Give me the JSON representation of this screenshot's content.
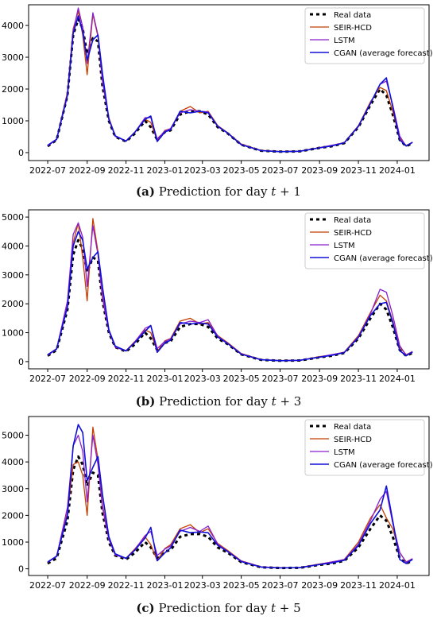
{
  "chart_data": [
    {
      "type": "line",
      "caption": {
        "letter": "(a)",
        "text": "Prediction for day",
        "var": "t",
        "plus": " + 1"
      },
      "x_ticks": [
        "2022-07",
        "2022-09",
        "2022-11",
        "2023-01",
        "2023-03",
        "2023-05",
        "2023-07",
        "2023-09",
        "2023-11",
        "2024-01"
      ],
      "y_ticks": [
        "0",
        "1000",
        "2000",
        "3000",
        "4000"
      ],
      "xlim": [
        "2022-06-01",
        "2024-02-20"
      ],
      "ylim": [
        -250,
        4650
      ],
      "legend_position": "top-right",
      "x": [
        "2022-07-01",
        "2022-07-15",
        "2022-08-01",
        "2022-08-10",
        "2022-08-18",
        "2022-08-25",
        "2022-09-01",
        "2022-09-10",
        "2022-09-18",
        "2022-09-25",
        "2022-10-05",
        "2022-10-15",
        "2022-11-01",
        "2022-11-15",
        "2022-12-01",
        "2022-12-10",
        "2022-12-20",
        "2023-01-01",
        "2023-01-10",
        "2023-01-25",
        "2023-02-10",
        "2023-02-25",
        "2023-03-10",
        "2023-03-25",
        "2023-04-10",
        "2023-05-01",
        "2023-06-01",
        "2023-07-01",
        "2023-08-01",
        "2023-09-01",
        "2023-09-20",
        "2023-10-10",
        "2023-11-01",
        "2023-11-20",
        "2023-12-05",
        "2023-12-15",
        "2023-12-25",
        "2024-01-05",
        "2024-01-15",
        "2024-01-25"
      ],
      "series": [
        {
          "name": "Real data",
          "color": "#000000",
          "dash": "4,4",
          "width": 3,
          "values": [
            200,
            400,
            1800,
            3700,
            4200,
            3900,
            3100,
            3600,
            3500,
            2100,
            1000,
            500,
            350,
            600,
            1000,
            800,
            400,
            650,
            700,
            1200,
            1300,
            1300,
            1200,
            800,
            600,
            250,
            60,
            30,
            40,
            150,
            200,
            300,
            800,
            1500,
            2000,
            1800,
            1200,
            400,
            200,
            300
          ]
        },
        {
          "name": "SEIR-HCD",
          "color": "#c43e00",
          "dash": "",
          "width": 1.3,
          "values": [
            220,
            420,
            1900,
            3900,
            4450,
            3700,
            2450,
            4350,
            3650,
            2300,
            1100,
            520,
            360,
            650,
            1050,
            950,
            380,
            700,
            750,
            1300,
            1450,
            1250,
            1300,
            850,
            620,
            270,
            70,
            35,
            45,
            160,
            220,
            320,
            850,
            1600,
            2050,
            1950,
            1300,
            450,
            220,
            330
          ]
        },
        {
          "name": "LSTM",
          "color": "#8a1fd0",
          "dash": "",
          "width": 1.3,
          "values": [
            210,
            410,
            1850,
            3800,
            4550,
            3950,
            2800,
            4400,
            3700,
            2250,
            1050,
            510,
            370,
            640,
            1100,
            1100,
            420,
            680,
            760,
            1250,
            1350,
            1300,
            1280,
            820,
            610,
            260,
            65,
            32,
            42,
            155,
            230,
            310,
            820,
            1550,
            2150,
            2250,
            1500,
            520,
            200,
            330
          ]
        },
        {
          "name": "CGAN (average forecast)",
          "color": "#1010d8",
          "dash": "",
          "width": 1.6,
          "values": [
            230,
            420,
            1800,
            3750,
            4300,
            3800,
            2900,
            3550,
            3700,
            2500,
            1050,
            530,
            360,
            640,
            1050,
            1150,
            350,
            650,
            720,
            1300,
            1250,
            1300,
            1250,
            830,
            610,
            250,
            62,
            30,
            42,
            150,
            210,
            310,
            830,
            1550,
            2150,
            2350,
            1450,
            400,
            210,
            320
          ]
        }
      ]
    },
    {
      "type": "line",
      "caption": {
        "letter": "(b)",
        "text": "Prediction for day",
        "var": "t",
        "plus": " + 3"
      },
      "x_ticks": [
        "2022-07",
        "2022-09",
        "2022-11",
        "2023-01",
        "2023-03",
        "2023-05",
        "2023-07",
        "2023-09",
        "2023-11",
        "2024-01"
      ],
      "y_ticks": [
        "0",
        "1000",
        "2000",
        "3000",
        "4000",
        "5000"
      ],
      "xlim": [
        "2022-06-01",
        "2024-02-20"
      ],
      "ylim": [
        -250,
        5250
      ],
      "legend_position": "top-right",
      "x": [
        "2022-07-01",
        "2022-07-15",
        "2022-08-01",
        "2022-08-10",
        "2022-08-18",
        "2022-08-25",
        "2022-09-01",
        "2022-09-10",
        "2022-09-18",
        "2022-09-25",
        "2022-10-05",
        "2022-10-15",
        "2022-11-01",
        "2022-11-15",
        "2022-12-01",
        "2022-12-10",
        "2022-12-20",
        "2023-01-01",
        "2023-01-10",
        "2023-01-25",
        "2023-02-10",
        "2023-02-25",
        "2023-03-10",
        "2023-03-25",
        "2023-04-10",
        "2023-05-01",
        "2023-06-01",
        "2023-07-01",
        "2023-08-01",
        "2023-09-01",
        "2023-09-20",
        "2023-10-10",
        "2023-11-01",
        "2023-11-20",
        "2023-12-05",
        "2023-12-15",
        "2023-12-25",
        "2024-01-05",
        "2024-01-15",
        "2024-01-25"
      ],
      "series": [
        {
          "name": "Real data",
          "color": "#000000",
          "dash": "4,4",
          "width": 3,
          "values": [
            200,
            400,
            1800,
            3700,
            4200,
            3900,
            3100,
            3600,
            3500,
            2100,
            1000,
            500,
            350,
            600,
            1000,
            800,
            400,
            650,
            700,
            1200,
            1300,
            1300,
            1200,
            800,
            600,
            250,
            60,
            30,
            40,
            150,
            200,
            300,
            800,
            1500,
            2000,
            1800,
            1200,
            400,
            200,
            300
          ]
        },
        {
          "name": "SEIR-HCD",
          "color": "#c43e00",
          "dash": "",
          "width": 1.3,
          "values": [
            230,
            450,
            2000,
            4100,
            4800,
            3600,
            2100,
            4950,
            3800,
            2300,
            1100,
            520,
            380,
            700,
            1100,
            1000,
            350,
            720,
            800,
            1400,
            1500,
            1300,
            1350,
            900,
            650,
            280,
            70,
            35,
            45,
            170,
            230,
            330,
            900,
            1700,
            2300,
            2100,
            1400,
            500,
            240,
            350
          ]
        },
        {
          "name": "LSTM",
          "color": "#8a1fd0",
          "dash": "",
          "width": 1.3,
          "values": [
            220,
            430,
            2100,
            4400,
            4800,
            4300,
            2600,
            4700,
            3700,
            2200,
            1050,
            500,
            370,
            680,
            1150,
            1250,
            450,
            700,
            780,
            1300,
            1400,
            1350,
            1450,
            880,
            630,
            270,
            68,
            33,
            43,
            160,
            240,
            320,
            860,
            1650,
            2500,
            2400,
            1600,
            550,
            220,
            350
          ]
        },
        {
          "name": "CGAN (average forecast)",
          "color": "#1010d8",
          "dash": "",
          "width": 1.6,
          "values": [
            240,
            440,
            1900,
            4000,
            4500,
            4200,
            3200,
            3600,
            3800,
            2600,
            1100,
            540,
            370,
            660,
            1050,
            1250,
            320,
            640,
            740,
            1350,
            1300,
            1330,
            1300,
            850,
            620,
            260,
            64,
            31,
            43,
            155,
            215,
            315,
            840,
            1600,
            2000,
            2050,
            1350,
            380,
            200,
            330
          ]
        }
      ]
    },
    {
      "type": "line",
      "caption": {
        "letter": "(c)",
        "text": "Prediction for day",
        "var": "t",
        "plus": " + 5"
      },
      "x_ticks": [
        "2022-07",
        "2022-09",
        "2022-11",
        "2023-01",
        "2023-03",
        "2023-05",
        "2023-07",
        "2023-09",
        "2023-11",
        "2024-01"
      ],
      "y_ticks": [
        "0",
        "1000",
        "2000",
        "3000",
        "4000",
        "5000"
      ],
      "xlim": [
        "2022-06-01",
        "2024-02-20"
      ],
      "ylim": [
        -250,
        5700
      ],
      "legend_position": "top-right",
      "x": [
        "2022-07-01",
        "2022-07-15",
        "2022-08-01",
        "2022-08-10",
        "2022-08-18",
        "2022-08-25",
        "2022-09-01",
        "2022-09-10",
        "2022-09-18",
        "2022-09-25",
        "2022-10-05",
        "2022-10-15",
        "2022-11-01",
        "2022-11-15",
        "2022-12-01",
        "2022-12-10",
        "2022-12-20",
        "2023-01-01",
        "2023-01-10",
        "2023-01-25",
        "2023-02-10",
        "2023-02-25",
        "2023-03-10",
        "2023-03-25",
        "2023-04-10",
        "2023-05-01",
        "2023-06-01",
        "2023-07-01",
        "2023-08-01",
        "2023-09-01",
        "2023-09-20",
        "2023-10-10",
        "2023-11-01",
        "2023-11-20",
        "2023-12-05",
        "2023-12-15",
        "2023-12-25",
        "2024-01-05",
        "2024-01-15",
        "2024-01-25"
      ],
      "series": [
        {
          "name": "Real data",
          "color": "#000000",
          "dash": "4,4",
          "width": 3,
          "values": [
            200,
            400,
            1800,
            3700,
            4200,
            3900,
            3100,
            3600,
            3500,
            2100,
            1000,
            500,
            350,
            600,
            1000,
            800,
            400,
            650,
            700,
            1200,
            1300,
            1300,
            1200,
            800,
            600,
            250,
            60,
            30,
            40,
            150,
            200,
            300,
            800,
            1500,
            2000,
            1800,
            1200,
            400,
            200,
            300
          ]
        },
        {
          "name": "SEIR-HCD",
          "color": "#c43e00",
          "dash": "",
          "width": 1.3,
          "values": [
            250,
            480,
            2100,
            3900,
            4000,
            3500,
            2000,
            5300,
            4100,
            2400,
            1150,
            550,
            400,
            750,
            1200,
            900,
            300,
            760,
            900,
            1500,
            1650,
            1350,
            1500,
            950,
            680,
            300,
            75,
            38,
            48,
            180,
            250,
            350,
            1000,
            1900,
            2400,
            1900,
            1500,
            600,
            260,
            380
          ]
        },
        {
          "name": "LSTM",
          "color": "#8a1fd0",
          "dash": "",
          "width": 1.3,
          "values": [
            240,
            460,
            2300,
            4600,
            5000,
            4400,
            2500,
            5000,
            3900,
            2300,
            1100,
            520,
            390,
            720,
            1250,
            1400,
            500,
            740,
            850,
            1400,
            1550,
            1400,
            1600,
            920,
            650,
            290,
            72,
            35,
            45,
            170,
            260,
            340,
            920,
            1800,
            2600,
            2900,
            1700,
            620,
            240,
            380
          ]
        },
        {
          "name": "CGAN (average forecast)",
          "color": "#1010d8",
          "dash": "",
          "width": 1.6,
          "values": [
            260,
            470,
            2000,
            4600,
            5400,
            5100,
            3300,
            3800,
            4200,
            2800,
            1200,
            560,
            390,
            700,
            1150,
            1550,
            300,
            600,
            780,
            1450,
            1350,
            1380,
            1350,
            880,
            640,
            270,
            66,
            32,
            45,
            160,
            220,
            320,
            870,
            1700,
            2200,
            3100,
            1800,
            350,
            200,
            350
          ]
        }
      ]
    }
  ]
}
